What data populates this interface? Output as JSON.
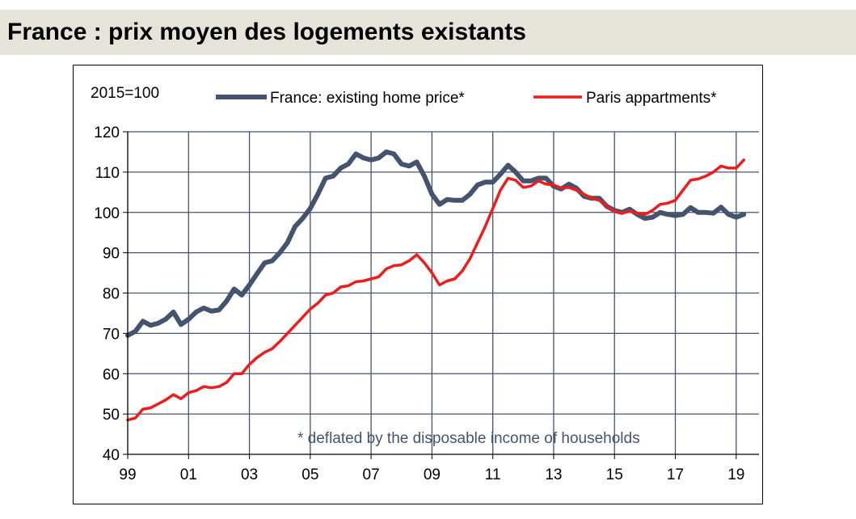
{
  "header": {
    "title": "France : prix moyen des logements existants"
  },
  "chart_data": {
    "type": "line",
    "base_label": "2015=100",
    "footnote": "* deflated by the disposable income of households",
    "ylim": [
      40,
      120
    ],
    "yticks": [
      40,
      50,
      60,
      70,
      80,
      90,
      100,
      110,
      120
    ],
    "xlim": [
      1999,
      2019.75
    ],
    "xticks": [
      {
        "label": "99",
        "year": 1999
      },
      {
        "label": "01",
        "year": 2001
      },
      {
        "label": "03",
        "year": 2003
      },
      {
        "label": "05",
        "year": 2005
      },
      {
        "label": "07",
        "year": 2007
      },
      {
        "label": "09",
        "year": 2009
      },
      {
        "label": "11",
        "year": 2011
      },
      {
        "label": "13",
        "year": 2013
      },
      {
        "label": "15",
        "year": 2015
      },
      {
        "label": "17",
        "year": 2017
      },
      {
        "label": "19",
        "year": 2019
      }
    ],
    "grid": true,
    "legend_position": "top",
    "series": [
      {
        "name": "France: existing home price*",
        "color": "#44546f",
        "points": [
          [
            1999.0,
            69.5
          ],
          [
            1999.25,
            70.5
          ],
          [
            1999.5,
            73.0
          ],
          [
            1999.75,
            72.0
          ],
          [
            2000.0,
            72.5
          ],
          [
            2000.25,
            73.5
          ],
          [
            2000.5,
            75.3
          ],
          [
            2000.75,
            72.2
          ],
          [
            2001.0,
            73.5
          ],
          [
            2001.25,
            75.3
          ],
          [
            2001.5,
            76.3
          ],
          [
            2001.75,
            75.5
          ],
          [
            2002.0,
            75.8
          ],
          [
            2002.25,
            78.0
          ],
          [
            2002.5,
            81.0
          ],
          [
            2002.75,
            79.5
          ],
          [
            2003.0,
            82.0
          ],
          [
            2003.25,
            84.8
          ],
          [
            2003.5,
            87.5
          ],
          [
            2003.75,
            88.0
          ],
          [
            2004.0,
            90.0
          ],
          [
            2004.25,
            92.5
          ],
          [
            2004.5,
            96.5
          ],
          [
            2004.75,
            98.5
          ],
          [
            2005.0,
            101.0
          ],
          [
            2005.25,
            104.5
          ],
          [
            2005.5,
            108.5
          ],
          [
            2005.75,
            109.0
          ],
          [
            2006.0,
            111.0
          ],
          [
            2006.25,
            112.0
          ],
          [
            2006.5,
            114.5
          ],
          [
            2006.75,
            113.5
          ],
          [
            2007.0,
            113.0
          ],
          [
            2007.25,
            113.5
          ],
          [
            2007.5,
            115.0
          ],
          [
            2007.75,
            114.5
          ],
          [
            2008.0,
            112.0
          ],
          [
            2008.25,
            111.5
          ],
          [
            2008.5,
            112.5
          ],
          [
            2008.75,
            109.0
          ],
          [
            2009.0,
            104.5
          ],
          [
            2009.25,
            102.0
          ],
          [
            2009.5,
            103.2
          ],
          [
            2009.75,
            103.0
          ],
          [
            2010.0,
            103.0
          ],
          [
            2010.25,
            104.5
          ],
          [
            2010.5,
            106.8
          ],
          [
            2010.75,
            107.5
          ],
          [
            2011.0,
            107.5
          ],
          [
            2011.25,
            109.5
          ],
          [
            2011.5,
            111.7
          ],
          [
            2011.75,
            110.0
          ],
          [
            2012.0,
            107.8
          ],
          [
            2012.25,
            107.8
          ],
          [
            2012.5,
            108.5
          ],
          [
            2012.75,
            108.5
          ],
          [
            2013.0,
            106.5
          ],
          [
            2013.25,
            105.8
          ],
          [
            2013.5,
            107.0
          ],
          [
            2013.75,
            106.0
          ],
          [
            2014.0,
            104.0
          ],
          [
            2014.25,
            103.5
          ],
          [
            2014.5,
            103.5
          ],
          [
            2014.75,
            101.5
          ],
          [
            2015.0,
            100.5
          ],
          [
            2015.25,
            100.0
          ],
          [
            2015.5,
            100.8
          ],
          [
            2015.75,
            99.5
          ],
          [
            2016.0,
            98.5
          ],
          [
            2016.25,
            98.8
          ],
          [
            2016.5,
            100.0
          ],
          [
            2016.75,
            99.5
          ],
          [
            2017.0,
            99.2
          ],
          [
            2017.25,
            99.5
          ],
          [
            2017.5,
            101.2
          ],
          [
            2017.75,
            100.0
          ],
          [
            2018.0,
            100.0
          ],
          [
            2018.25,
            99.8
          ],
          [
            2018.5,
            101.3
          ],
          [
            2018.75,
            99.5
          ],
          [
            2019.0,
            98.8
          ],
          [
            2019.25,
            99.5
          ]
        ]
      },
      {
        "name": "Paris appartments*",
        "color": "#ee1c1c",
        "points": [
          [
            1999.0,
            48.5
          ],
          [
            1999.25,
            49.0
          ],
          [
            1999.5,
            51.2
          ],
          [
            1999.75,
            51.5
          ],
          [
            2000.0,
            52.5
          ],
          [
            2000.25,
            53.5
          ],
          [
            2000.5,
            54.8
          ],
          [
            2000.75,
            53.8
          ],
          [
            2001.0,
            55.3
          ],
          [
            2001.25,
            55.8
          ],
          [
            2001.5,
            56.8
          ],
          [
            2001.75,
            56.5
          ],
          [
            2002.0,
            56.8
          ],
          [
            2002.25,
            57.8
          ],
          [
            2002.5,
            60.0
          ],
          [
            2002.75,
            60.0
          ],
          [
            2003.0,
            62.3
          ],
          [
            2003.25,
            64.0
          ],
          [
            2003.5,
            65.3
          ],
          [
            2003.75,
            66.2
          ],
          [
            2004.0,
            68.0
          ],
          [
            2004.25,
            70.0
          ],
          [
            2004.5,
            72.0
          ],
          [
            2004.75,
            74.0
          ],
          [
            2005.0,
            76.0
          ],
          [
            2005.25,
            77.5
          ],
          [
            2005.5,
            79.5
          ],
          [
            2005.75,
            80.0
          ],
          [
            2006.0,
            81.5
          ],
          [
            2006.25,
            81.8
          ],
          [
            2006.5,
            82.8
          ],
          [
            2006.75,
            83.0
          ],
          [
            2007.0,
            83.5
          ],
          [
            2007.25,
            84.0
          ],
          [
            2007.5,
            86.0
          ],
          [
            2007.75,
            86.8
          ],
          [
            2008.0,
            87.0
          ],
          [
            2008.25,
            88.0
          ],
          [
            2008.5,
            89.5
          ],
          [
            2008.75,
            87.5
          ],
          [
            2009.0,
            85.0
          ],
          [
            2009.25,
            82.0
          ],
          [
            2009.5,
            83.0
          ],
          [
            2009.75,
            83.5
          ],
          [
            2010.0,
            85.5
          ],
          [
            2010.25,
            88.5
          ],
          [
            2010.5,
            92.5
          ],
          [
            2010.75,
            96.5
          ],
          [
            2011.0,
            101.0
          ],
          [
            2011.25,
            105.5
          ],
          [
            2011.5,
            108.5
          ],
          [
            2011.75,
            108.0
          ],
          [
            2012.0,
            106.2
          ],
          [
            2012.25,
            106.5
          ],
          [
            2012.5,
            107.8
          ],
          [
            2012.75,
            107.0
          ],
          [
            2013.0,
            106.8
          ],
          [
            2013.25,
            106.0
          ],
          [
            2013.5,
            106.2
          ],
          [
            2013.75,
            105.5
          ],
          [
            2014.0,
            104.5
          ],
          [
            2014.25,
            103.5
          ],
          [
            2014.5,
            103.0
          ],
          [
            2014.75,
            101.5
          ],
          [
            2015.0,
            100.2
          ],
          [
            2015.25,
            99.8
          ],
          [
            2015.5,
            100.3
          ],
          [
            2015.75,
            99.8
          ],
          [
            2016.0,
            99.5
          ],
          [
            2016.25,
            100.5
          ],
          [
            2016.5,
            102.0
          ],
          [
            2016.75,
            102.3
          ],
          [
            2017.0,
            103.0
          ],
          [
            2017.25,
            105.5
          ],
          [
            2017.5,
            108.0
          ],
          [
            2017.75,
            108.3
          ],
          [
            2018.0,
            109.0
          ],
          [
            2018.25,
            110.0
          ],
          [
            2018.5,
            111.5
          ],
          [
            2018.75,
            111.0
          ],
          [
            2019.0,
            111.0
          ],
          [
            2019.25,
            113.0
          ]
        ]
      }
    ]
  }
}
